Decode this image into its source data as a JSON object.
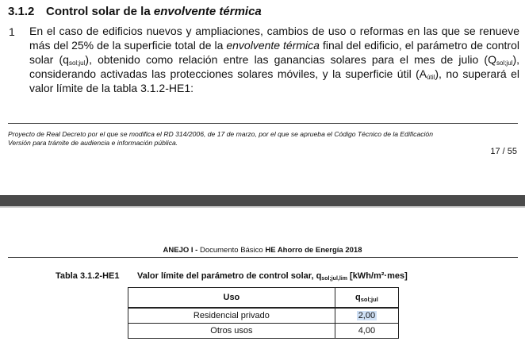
{
  "section": {
    "number": "3.1.2",
    "title_plain": "Control solar de la ",
    "title_italic": "envolvente térmica"
  },
  "paragraph": {
    "number": "1",
    "t1": "En el caso de edificios nuevos y ampliaciones, cambios de uso o reformas en las que se renueve más del 25% de la superficie total de la ",
    "t1_italic": "envolvente térmica",
    "t2": " final del edificio, el parámetro de control solar (q",
    "sub1": "sol;jul",
    "t3": "), obtenido como relación entre las ganancias solares para el mes de julio (Q",
    "sub2": "sol;jul",
    "t4": "), considerando activadas las protecciones solares móviles, y la superficie útil (A",
    "sub3": "útil",
    "t5": "), no superará el valor límite de la tabla 3.1.2-HE1:"
  },
  "footer": {
    "line1": "Proyecto de Real Decreto por el que se modifica el RD 314/2006, de 17 de marzo, por el que se aprueba el Código Técnico de la Edificación",
    "line2": "Versión para trámite de audiencia e información pública.",
    "page": "17 / 55"
  },
  "annex": {
    "part1": "ANEJO I  -  ",
    "part2": "Documento Básico",
    "part3": " HE Ahorro de Energía 2018"
  },
  "table": {
    "label": "Tabla 3.1.2-HE1",
    "caption_a": "Valor límite del parámetro de control solar, q",
    "caption_sub": "sol;jul,lim",
    "caption_b": " [kWh/m²·mes]",
    "col1": "Uso",
    "col2_main": "q",
    "col2_sub": "sol;jul",
    "rows": [
      {
        "uso": "Residencial privado",
        "value": "2,00"
      },
      {
        "uso": "Otros usos",
        "value": "4,00"
      }
    ]
  }
}
